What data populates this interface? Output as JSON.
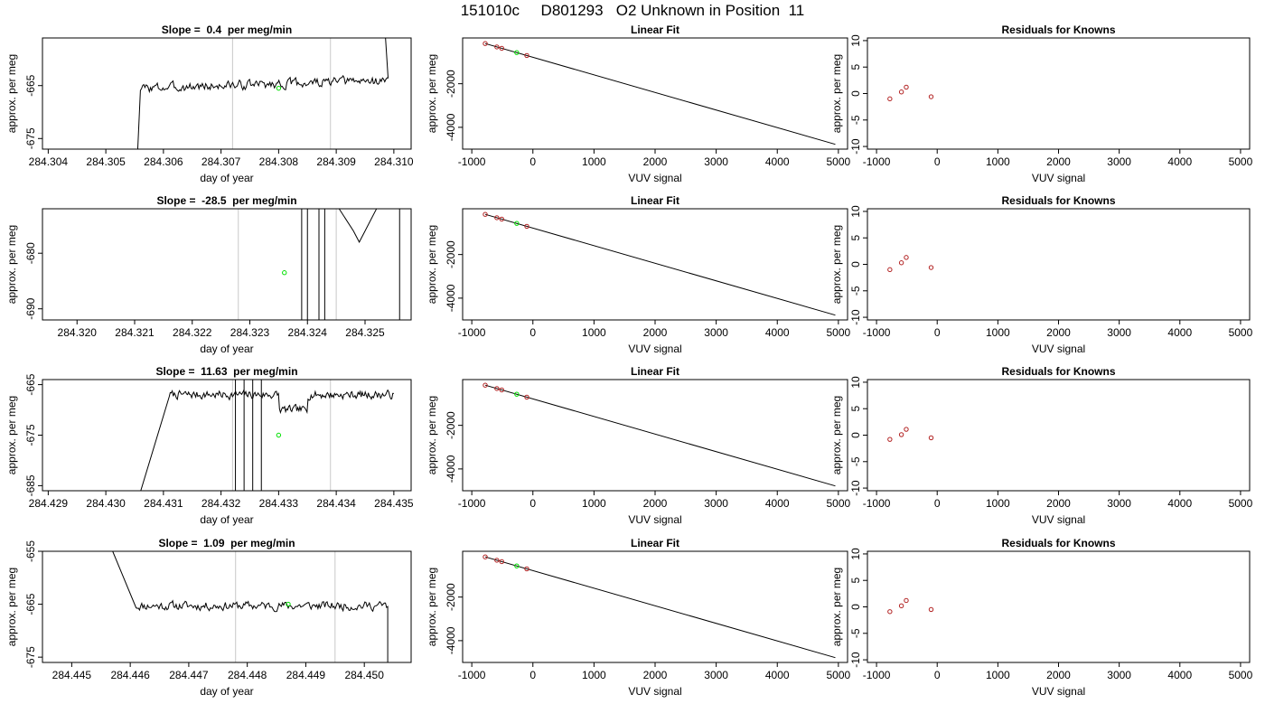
{
  "main_title": "151010c     D801293   O2 Unknown in Position  11",
  "colors": {
    "trace": "#000000",
    "window": "#c8c8c8",
    "unknown": "#00e000",
    "known": "#b22222",
    "fit": "#000000"
  },
  "chart_data": [
    {
      "id": "row1-timeseries",
      "type": "line",
      "title": "Slope =  0.4  per meg/min",
      "xlabel": "day of year",
      "ylabel": "approx. per meg",
      "xlim": [
        284.3039,
        284.3103
      ],
      "ylim": [
        -677,
        -656
      ],
      "xticks": [
        284.304,
        284.305,
        284.306,
        284.307,
        284.308,
        284.309,
        284.31
      ],
      "xtick_labels": [
        "284.304",
        "284.305",
        "284.306",
        "284.307",
        "284.308",
        "284.309",
        "284.310"
      ],
      "yticks": [
        -665,
        -675
      ],
      "ytick_labels": [
        "-665",
        "-675"
      ],
      "window_lines": [
        284.3072,
        284.3089
      ],
      "unknown_point": {
        "x": 284.308,
        "y": -665.5
      },
      "trace": {
        "start": 284.3056,
        "end": 284.3099,
        "base": -665.5,
        "trend": 1.5,
        "noise": 1.4,
        "seed": 3,
        "lead_in": 0.0001,
        "lead_from": -690,
        "tail": 284.3097,
        "tail_to": -650
      }
    },
    {
      "id": "row1-fit",
      "type": "scatter",
      "title": "Linear Fit",
      "xlabel": "VUV signal",
      "ylabel": "approx. per meg",
      "xlim": [
        -1150,
        5150
      ],
      "ylim": [
        -5000,
        100
      ],
      "xticks": [
        -1000,
        0,
        1000,
        2000,
        3000,
        4000,
        5000
      ],
      "xtick_labels": [
        "-1000",
        "0",
        "1000",
        "2000",
        "3000",
        "4000",
        "5000"
      ],
      "yticks": [
        -2000,
        -4000
      ],
      "ytick_labels": [
        "-2000",
        "-4000"
      ],
      "fit_line": [
        [
          -780,
          -157
        ],
        [
          4950,
          -4780
        ]
      ],
      "known_points": [
        [
          -780,
          -157
        ],
        [
          -590,
          -310
        ],
        [
          -510,
          -375
        ],
        [
          -100,
          -705
        ]
      ],
      "unknown_point": [
        -265,
        -570
      ]
    },
    {
      "id": "row1-residuals",
      "type": "scatter",
      "title": "Residuals for Knowns",
      "xlabel": "VUV signal",
      "ylabel": "approx. per meg",
      "xlim": [
        -1150,
        5150
      ],
      "ylim": [
        -10.5,
        10.5
      ],
      "xticks": [
        -1000,
        0,
        1000,
        2000,
        3000,
        4000,
        5000
      ],
      "xtick_labels": [
        "-1000",
        "0",
        "1000",
        "2000",
        "3000",
        "4000",
        "5000"
      ],
      "yticks": [
        10,
        5,
        0,
        -5,
        -10
      ],
      "ytick_labels": [
        "10",
        "5",
        "0",
        "-5",
        "-10"
      ],
      "known_points": [
        [
          -780,
          -1.0
        ],
        [
          -590,
          0.3
        ],
        [
          -510,
          1.2
        ],
        [
          -100,
          -0.6
        ]
      ]
    },
    {
      "id": "row2-timeseries",
      "type": "line",
      "title": "Slope =  -28.5  per meg/min",
      "xlabel": "day of year",
      "ylabel": "approx. per meg",
      "xlim": [
        284.3194,
        284.3258
      ],
      "ylim": [
        -692,
        -672
      ],
      "xticks": [
        284.32,
        284.321,
        284.322,
        284.323,
        284.324,
        284.325
      ],
      "xtick_labels": [
        "284.320",
        "284.321",
        "284.322",
        "284.323",
        "284.324",
        "284.325"
      ],
      "yticks": [
        -680,
        -690
      ],
      "ytick_labels": [
        "-680",
        "-690"
      ],
      "window_lines": [
        284.3228,
        284.3245
      ],
      "unknown_point": {
        "x": 284.3236,
        "y": -683.5
      },
      "spikes": [
        284.3239,
        284.324,
        284.3242,
        284.3243
      ],
      "segment": [
        [
          284.3244,
          -660
        ],
        [
          284.32455,
          -672
        ],
        [
          284.3248,
          -676
        ],
        [
          284.3249,
          -678
        ],
        [
          284.325,
          -676
        ],
        [
          284.3252,
          -672
        ],
        [
          284.3254,
          -660
        ]
      ],
      "drop": {
        "x": 284.3256,
        "from": -672,
        "to": -700
      }
    },
    {
      "id": "row2-fit",
      "type": "scatter",
      "title": "Linear Fit",
      "xlabel": "VUV signal",
      "ylabel": "approx. per meg",
      "xlim": [
        -1150,
        5150
      ],
      "ylim": [
        -5000,
        100
      ],
      "xticks": [
        -1000,
        0,
        1000,
        2000,
        3000,
        4000,
        5000
      ],
      "xtick_labels": [
        "-1000",
        "0",
        "1000",
        "2000",
        "3000",
        "4000",
        "5000"
      ],
      "yticks": [
        -2000,
        -4000
      ],
      "ytick_labels": [
        "-2000",
        "-4000"
      ],
      "fit_line": [
        [
          -780,
          -157
        ],
        [
          4950,
          -4780
        ]
      ],
      "known_points": [
        [
          -780,
          -157
        ],
        [
          -590,
          -310
        ],
        [
          -510,
          -375
        ],
        [
          -100,
          -705
        ]
      ],
      "unknown_point": [
        -265,
        -570
      ]
    },
    {
      "id": "row2-residuals",
      "type": "scatter",
      "title": "Residuals for Knowns",
      "xlabel": "VUV signal",
      "ylabel": "approx. per meg",
      "xlim": [
        -1150,
        5150
      ],
      "ylim": [
        -10.5,
        10.5
      ],
      "xticks": [
        -1000,
        0,
        1000,
        2000,
        3000,
        4000,
        5000
      ],
      "xtick_labels": [
        "-1000",
        "0",
        "1000",
        "2000",
        "3000",
        "4000",
        "5000"
      ],
      "yticks": [
        10,
        5,
        0,
        -5,
        -10
      ],
      "ytick_labels": [
        "10",
        "5",
        "0",
        "-5",
        "-10"
      ],
      "known_points": [
        [
          -780,
          -1.0
        ],
        [
          -590,
          0.3
        ],
        [
          -510,
          1.3
        ],
        [
          -100,
          -0.6
        ]
      ]
    },
    {
      "id": "row3-timeseries",
      "type": "line",
      "title": "Slope =  11.63  per meg/min",
      "xlabel": "day of year",
      "ylabel": "approx. per meg",
      "xlim": [
        284.4289,
        284.4353
      ],
      "ylim": [
        -686,
        -664
      ],
      "xticks": [
        284.429,
        284.43,
        284.431,
        284.432,
        284.433,
        284.434,
        284.435
      ],
      "xtick_labels": [
        "284.429",
        "284.430",
        "284.431",
        "284.432",
        "284.433",
        "284.434",
        "284.435"
      ],
      "yticks": [
        -665,
        -675,
        -685
      ],
      "ytick_labels": [
        "-665",
        "-675",
        "-685"
      ],
      "window_lines": [
        284.4322,
        284.4339
      ],
      "unknown_point": {
        "x": 284.433,
        "y": -675
      },
      "trace": {
        "start": 284.4311,
        "end": 284.435,
        "base": -667,
        "trend": 0,
        "noise": 1.3,
        "seed": 7,
        "lead_in": 0.0006,
        "lead_from": -690
      },
      "spikes": [
        284.43225,
        284.4324,
        284.43255,
        284.4327
      ],
      "dip": {
        "from": 284.433,
        "to": 284.4335,
        "depth": -3
      }
    },
    {
      "id": "row3-fit",
      "type": "scatter",
      "title": "Linear Fit",
      "xlabel": "VUV signal",
      "ylabel": "approx. per meg",
      "xlim": [
        -1150,
        5150
      ],
      "ylim": [
        -5000,
        100
      ],
      "xticks": [
        -1000,
        0,
        1000,
        2000,
        3000,
        4000,
        5000
      ],
      "xtick_labels": [
        "-1000",
        "0",
        "1000",
        "2000",
        "3000",
        "4000",
        "5000"
      ],
      "yticks": [
        -2000,
        -4000
      ],
      "ytick_labels": [
        "-2000",
        "-4000"
      ],
      "fit_line": [
        [
          -780,
          -157
        ],
        [
          4950,
          -4780
        ]
      ],
      "known_points": [
        [
          -780,
          -157
        ],
        [
          -590,
          -310
        ],
        [
          -510,
          -375
        ],
        [
          -100,
          -705
        ]
      ],
      "unknown_point": [
        -265,
        -570
      ]
    },
    {
      "id": "row3-residuals",
      "type": "scatter",
      "title": "Residuals for Knowns",
      "xlabel": "VUV signal",
      "ylabel": "approx. per meg",
      "xlim": [
        -1150,
        5150
      ],
      "ylim": [
        -10.5,
        10.5
      ],
      "xticks": [
        -1000,
        0,
        1000,
        2000,
        3000,
        4000,
        5000
      ],
      "xtick_labels": [
        "-1000",
        "0",
        "1000",
        "2000",
        "3000",
        "4000",
        "5000"
      ],
      "yticks": [
        10,
        5,
        0,
        -5,
        -10
      ],
      "ytick_labels": [
        "10",
        "5",
        "0",
        "-5",
        "-10"
      ],
      "known_points": [
        [
          -780,
          -0.8
        ],
        [
          -590,
          0.1
        ],
        [
          -510,
          1.1
        ],
        [
          -100,
          -0.5
        ]
      ]
    },
    {
      "id": "row4-timeseries",
      "type": "line",
      "title": "Slope =  1.09  per meg/min",
      "xlabel": "day of year",
      "ylabel": "approx. per meg",
      "xlim": [
        284.4445,
        284.4508
      ],
      "ylim": [
        -676,
        -655
      ],
      "xticks": [
        284.445,
        284.446,
        284.447,
        284.448,
        284.449,
        284.45
      ],
      "xtick_labels": [
        "284.445",
        "284.446",
        "284.447",
        "284.448",
        "284.449",
        "284.450"
      ],
      "yticks": [
        -655,
        -665,
        -675
      ],
      "ytick_labels": [
        "-655",
        "-665",
        "-675"
      ],
      "window_lines": [
        284.4478,
        284.4495
      ],
      "unknown_point": {
        "x": 284.4487,
        "y": -665
      },
      "trace": {
        "start": 284.4461,
        "end": 284.4504,
        "base": -665.3,
        "trend": 0,
        "noise": 1.3,
        "seed": 11,
        "lead_in": 0.0004,
        "lead_from": -655,
        "tail": 284.4504,
        "tail_to": -680
      }
    },
    {
      "id": "row4-fit",
      "type": "scatter",
      "title": "Linear Fit",
      "xlabel": "VUV signal",
      "ylabel": "approx. per meg",
      "xlim": [
        -1150,
        5150
      ],
      "ylim": [
        -5000,
        100
      ],
      "xticks": [
        -1000,
        0,
        1000,
        2000,
        3000,
        4000,
        5000
      ],
      "xtick_labels": [
        "-1000",
        "0",
        "1000",
        "2000",
        "3000",
        "4000",
        "5000"
      ],
      "yticks": [
        -2000,
        -4000
      ],
      "ytick_labels": [
        "-2000",
        "-4000"
      ],
      "fit_line": [
        [
          -780,
          -157
        ],
        [
          4950,
          -4780
        ]
      ],
      "known_points": [
        [
          -780,
          -157
        ],
        [
          -590,
          -310
        ],
        [
          -510,
          -375
        ],
        [
          -100,
          -705
        ]
      ],
      "unknown_point": [
        -265,
        -570
      ]
    },
    {
      "id": "row4-residuals",
      "type": "scatter",
      "title": "Residuals for Knowns",
      "xlabel": "VUV signal",
      "ylabel": "approx. per meg",
      "xlim": [
        -1150,
        5150
      ],
      "ylim": [
        -10.5,
        10.5
      ],
      "xticks": [
        -1000,
        0,
        1000,
        2000,
        3000,
        4000,
        5000
      ],
      "xtick_labels": [
        "-1000",
        "0",
        "1000",
        "2000",
        "3000",
        "4000",
        "5000"
      ],
      "yticks": [
        10,
        5,
        0,
        -5,
        -10
      ],
      "ytick_labels": [
        "10",
        "5",
        "0",
        "-5",
        "-10"
      ],
      "known_points": [
        [
          -780,
          -0.9
        ],
        [
          -590,
          0.2
        ],
        [
          -510,
          1.2
        ],
        [
          -100,
          -0.5
        ]
      ]
    }
  ]
}
